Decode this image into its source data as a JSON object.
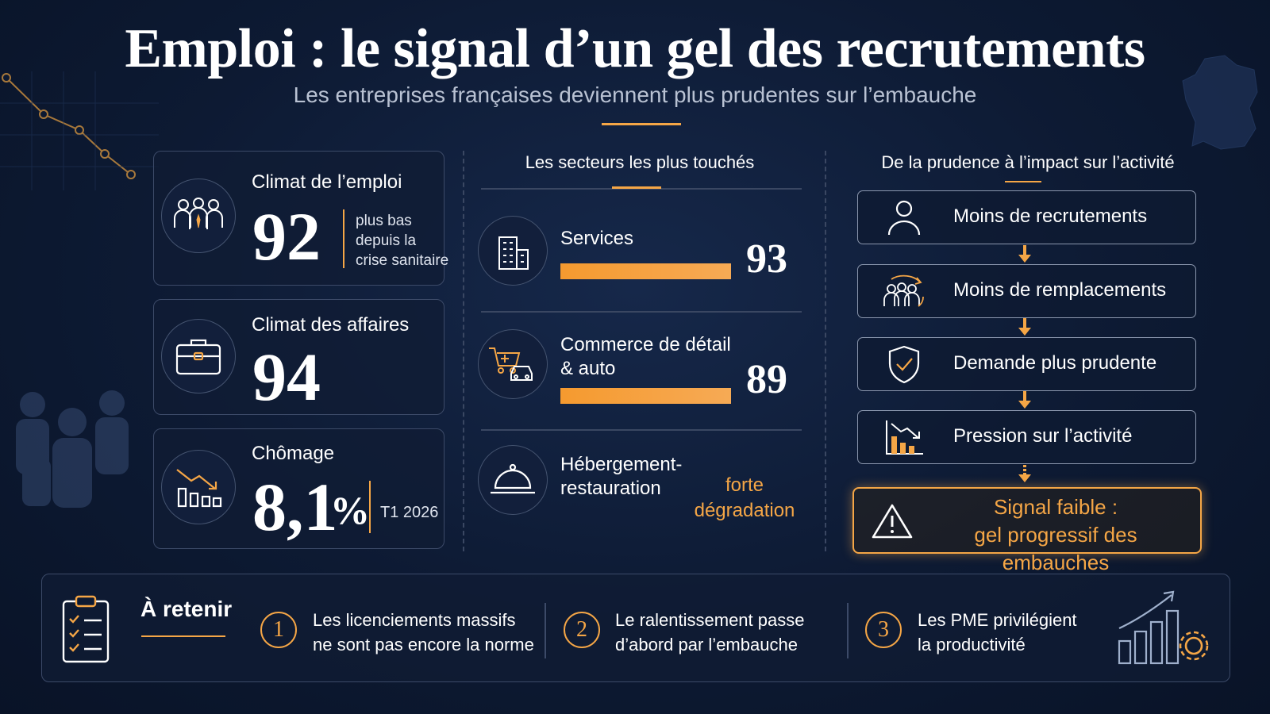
{
  "header": {
    "title": "Emploi : le signal d’un gel des recrutements",
    "subtitle": "Les entreprises françaises deviennent plus prudentes sur l’embauche"
  },
  "indicators": [
    {
      "label": "Climat de l’emploi",
      "value": "92",
      "note_lines": [
        "plus bas",
        "depuis la",
        "crise sanitaire"
      ],
      "icon": "team-icon"
    },
    {
      "label": "Climat des affaires",
      "value": "94",
      "icon": "briefcase-icon"
    },
    {
      "label": "Chômage",
      "value": "8,1",
      "unit": "%",
      "note": "T1 2026",
      "icon": "declining-chart-icon"
    }
  ],
  "sectors": {
    "title": "Les secteurs les plus touchés",
    "items": [
      {
        "label_lines": [
          "Services"
        ],
        "value": "93",
        "bar_fraction": 1.0,
        "icon": "building-icon"
      },
      {
        "label_lines": [
          "Commerce de détail",
          "& auto"
        ],
        "value": "89",
        "bar_fraction": 1.0,
        "icon": "cart-car-icon"
      },
      {
        "label_lines": [
          "Hébergement-",
          "restauration"
        ],
        "note_lines": [
          "forte",
          "dégradation"
        ],
        "icon": "cloche-icon"
      }
    ]
  },
  "impact": {
    "title": "De la prudence à l’impact sur l’activité",
    "steps": [
      {
        "label": "Moins de recrutements",
        "icon": "person-icon"
      },
      {
        "label": "Moins de remplacements",
        "icon": "people-cycle-icon"
      },
      {
        "label": "Demande plus prudente",
        "icon": "shield-check-icon"
      },
      {
        "label": "Pression sur l’activité",
        "icon": "falling-bars-icon"
      }
    ],
    "signal_lines": [
      "Signal faible :",
      "gel progressif des embauches"
    ],
    "signal_icon": "warning-icon"
  },
  "takeaways": {
    "title": "À retenir",
    "icon": "clipboard-checklist-icon",
    "end_icon": "growth-gear-icon",
    "points": [
      {
        "number": "1",
        "lines": [
          "Les licenciements massifs",
          "ne sont pas encore la norme"
        ]
      },
      {
        "number": "2",
        "lines": [
          "Le ralentissement passe",
          "d’abord par l’embauche"
        ]
      },
      {
        "number": "3",
        "lines": [
          "Les PME privilégient",
          "la productivité"
        ]
      }
    ]
  },
  "colors": {
    "accent": "#f5a646",
    "background": "#0d1a33",
    "border": "#3c4a68"
  }
}
